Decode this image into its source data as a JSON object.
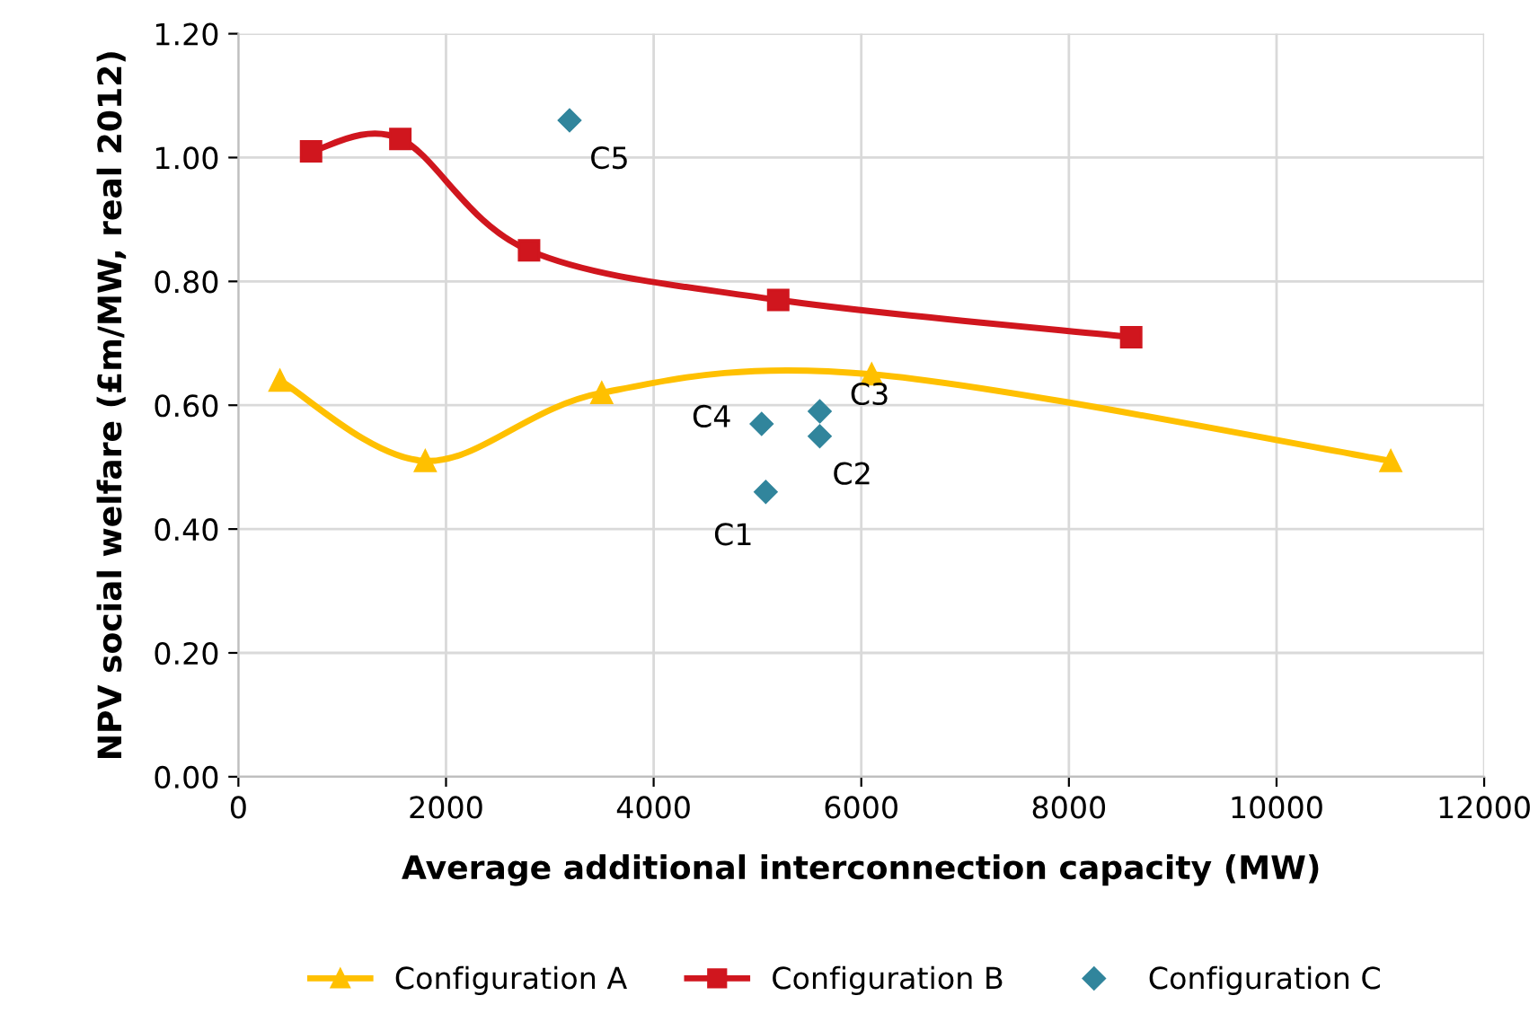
{
  "chart_data": {
    "type": "line",
    "xlabel": "Average additional interconnection capacity (MW)",
    "ylabel": "NPV social welfare (£m/MW, real 2012)",
    "xlim": [
      0,
      12000
    ],
    "xticks": [
      0,
      2000,
      4000,
      6000,
      8000,
      10000,
      12000
    ],
    "ylim": [
      0,
      1.2
    ],
    "yticks": [
      {
        "value": 0,
        "label": "0.00"
      },
      {
        "value": 0.2,
        "label": "0.20"
      },
      {
        "value": 0.4,
        "label": "0.40"
      },
      {
        "value": 0.6,
        "label": "0.60"
      },
      {
        "value": 0.8,
        "label": "0.80"
      },
      {
        "value": 1.0,
        "label": "1.00"
      },
      {
        "value": 1.2,
        "label": "1.20"
      }
    ],
    "grid": true,
    "legend": "bottom",
    "series": [
      {
        "name": "Configuration A",
        "color": "#ffc000",
        "marker": "triangle",
        "x": [
          400,
          1800,
          3500,
          6100,
          11100
        ],
        "values": [
          0.64,
          0.51,
          0.62,
          0.65,
          0.51
        ]
      },
      {
        "name": "Configuration B",
        "color": "#d0161e",
        "marker": "square",
        "x": [
          700,
          1560,
          2800,
          5200,
          8600
        ],
        "values": [
          1.01,
          1.03,
          0.85,
          0.77,
          0.71
        ]
      },
      {
        "name": "Configuration C",
        "type": "scatter",
        "color": "#31859c",
        "marker": "diamond",
        "x": [
          5080,
          5600,
          5600,
          5040,
          3190
        ],
        "values": [
          0.46,
          0.55,
          0.59,
          0.57,
          1.06
        ]
      }
    ],
    "annotations": [
      {
        "text": "C1",
        "x": 5080,
        "y": 0.46
      },
      {
        "text": "C2",
        "x": 5600,
        "y": 0.55
      },
      {
        "text": "C3",
        "x": 5600,
        "y": 0.59
      },
      {
        "text": "C4",
        "x": 5040,
        "y": 0.57
      },
      {
        "text": "C5",
        "x": 3190,
        "y": 1.06
      }
    ]
  }
}
